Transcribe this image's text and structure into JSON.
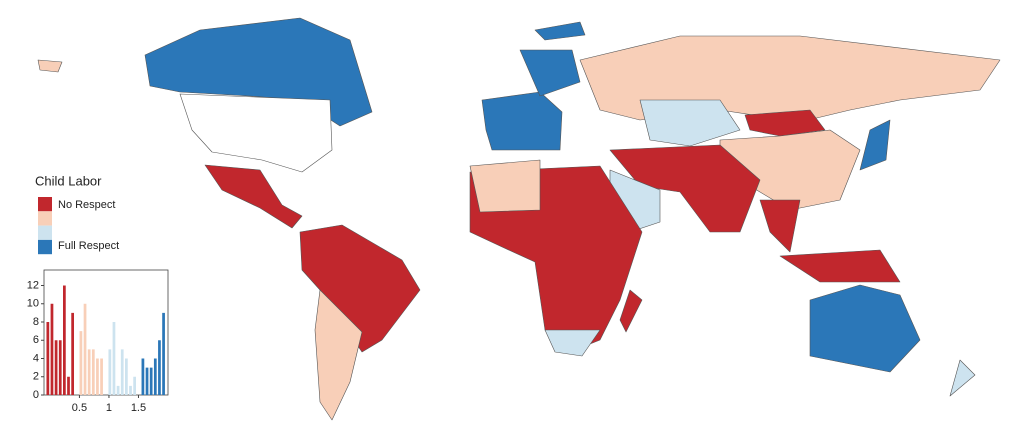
{
  "legend": {
    "title": "Child Labor",
    "labels": [
      "No Respect",
      "Full Respect"
    ],
    "colors": [
      "#c1272d",
      "#f8cfb8",
      "#cde3ef",
      "#2b77b8"
    ]
  },
  "chart_data": {
    "type": "histogram",
    "bins": [
      -0.07,
      0,
      0.07,
      0.14,
      0.21,
      0.28,
      0.35,
      0.42,
      0.49,
      0.56,
      0.63,
      0.7,
      0.77,
      0.84,
      0.91,
      0.98,
      1.05,
      1.12,
      1.19,
      1.26,
      1.33,
      1.4,
      1.47,
      1.54,
      1.61,
      1.68,
      1.75,
      1.82,
      1.89,
      1.96
    ],
    "counts": [
      8,
      10,
      6,
      6,
      12,
      2,
      9,
      0,
      7,
      10,
      5,
      5,
      4,
      4,
      0,
      5,
      8,
      1,
      5,
      4,
      1,
      2,
      0,
      4,
      3,
      3,
      4,
      6,
      9
    ],
    "bar_colors": [
      "#c1272d",
      "#c1272d",
      "#c1272d",
      "#c1272d",
      "#c1272d",
      "#c1272d",
      "#c1272d",
      "#f8cfb8",
      "#f8cfb8",
      "#f8cfb8",
      "#f8cfb8",
      "#f8cfb8",
      "#f8cfb8",
      "#f8cfb8",
      "#f8cfb8",
      "#cde3ef",
      "#cde3ef",
      "#cde3ef",
      "#cde3ef",
      "#cde3ef",
      "#cde3ef",
      "#cde3ef",
      "#2b77b8",
      "#2b77b8",
      "#2b77b8",
      "#2b77b8",
      "#2b77b8",
      "#2b77b8",
      "#2b77b8"
    ],
    "xlim": [
      -0.1,
      2.0
    ],
    "ylim": [
      0,
      13.7
    ],
    "xticks": [
      0.5,
      1,
      1.5
    ],
    "yticks": [
      0,
      2,
      4,
      6,
      8,
      10,
      12
    ]
  }
}
